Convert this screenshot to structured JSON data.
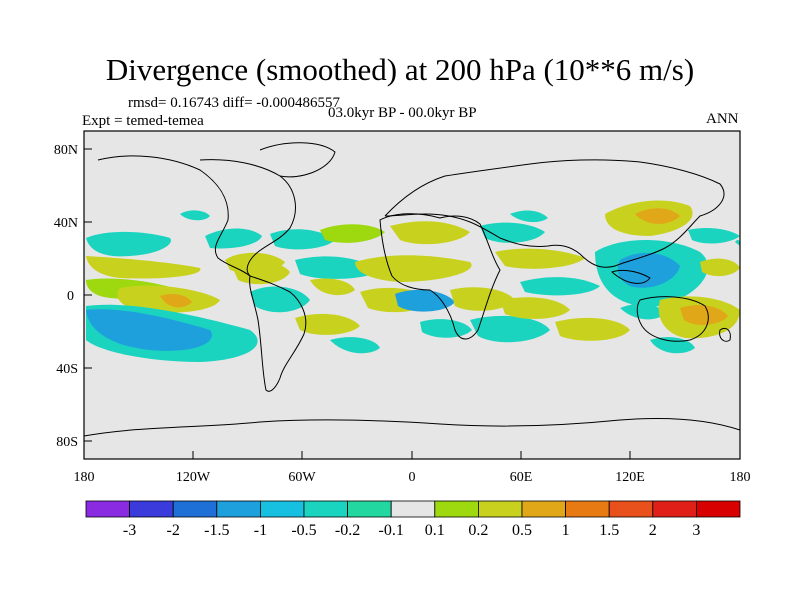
{
  "title": "Divergence (smoothed) at 200 hPa (10**6 m/s)",
  "stats": "rmsd= 0.16743 diff= -0.000486557",
  "expt": "Expt = temed-temea",
  "period": "03.0kyr BP - 00.0kyr BP",
  "season": "ANN",
  "axes": {
    "lat_labels": [
      "80N",
      "40N",
      "0",
      "40S",
      "80S"
    ],
    "lon_labels": [
      "180",
      "120W",
      "60W",
      "0",
      "60E",
      "120E",
      "180"
    ]
  },
  "colorbar": {
    "labels": [
      "-3",
      "-2",
      "-1.5",
      "-1",
      "-0.5",
      "-0.2",
      "-0.1",
      "0.1",
      "0.2",
      "0.5",
      "1",
      "1.5",
      "2",
      "3"
    ],
    "colors": [
      "#8a2be2",
      "#3b3bdc",
      "#1e6fd6",
      "#1ea0dc",
      "#17c0e0",
      "#1ad4c0",
      "#22d8a0",
      "#e6e6e6",
      "#9ed80e",
      "#c8d21e",
      "#e0a818",
      "#e87a14",
      "#e8501c",
      "#e02018",
      "#d80000"
    ]
  },
  "palette": {
    "neg_strong": "#1ea0dc",
    "neg_mid": "#17c0e0",
    "neg_weak": "#22d8a0",
    "pos_weak": "#9ed80e",
    "pos_mid": "#c8d21e",
    "pos_strong": "#e0a818",
    "background": "#e6e6e6"
  }
}
